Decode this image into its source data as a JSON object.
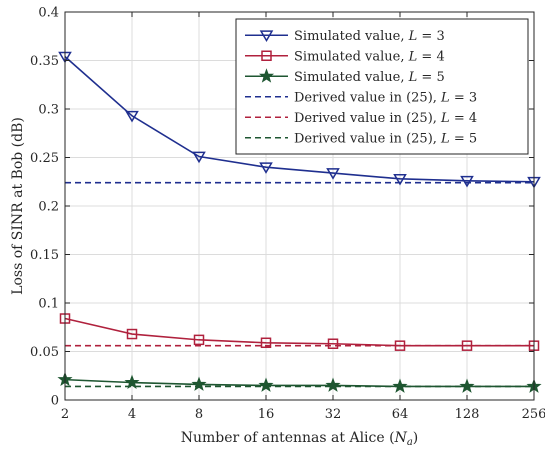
{
  "chart_data": {
    "type": "line",
    "xlabel": "Number of antennas at Alice (N_a)",
    "ylabel": "Loss of SINR at Bob (dB)",
    "x_ticks": [
      "2",
      "4",
      "8",
      "16",
      "32",
      "64",
      "128",
      "256"
    ],
    "x_scale": "log2",
    "ylim": [
      0,
      0.4
    ],
    "y_ticks": [
      "0",
      "0.05",
      "0.1",
      "0.15",
      "0.2",
      "0.25",
      "0.3",
      "0.35",
      "0.4"
    ],
    "grid": true,
    "legend_position": "top-right",
    "series": [
      {
        "name": "Simulated value, L = 3",
        "style": "solid",
        "marker": "triangle-down",
        "color": "#1f2f8f",
        "values": [
          0.354,
          0.293,
          0.251,
          0.24,
          0.234,
          0.228,
          0.226,
          0.225
        ]
      },
      {
        "name": "Simulated value, L = 4",
        "style": "solid",
        "marker": "square",
        "color": "#b0213d",
        "values": [
          0.084,
          0.068,
          0.062,
          0.059,
          0.058,
          0.056,
          0.056,
          0.056
        ]
      },
      {
        "name": "Simulated value, L = 5",
        "style": "solid",
        "marker": "star",
        "color": "#1e5631",
        "values": [
          0.021,
          0.018,
          0.016,
          0.015,
          0.015,
          0.014,
          0.014,
          0.014
        ]
      },
      {
        "name": "Derived value in (25), L = 3",
        "style": "dashed",
        "marker": "none",
        "color": "#1f2f8f",
        "values": [
          0.224,
          0.224,
          0.224,
          0.224,
          0.224,
          0.224,
          0.224,
          0.224
        ]
      },
      {
        "name": "Derived value in (25), L = 4",
        "style": "dashed",
        "marker": "none",
        "color": "#b0213d",
        "values": [
          0.056,
          0.056,
          0.056,
          0.056,
          0.056,
          0.056,
          0.056,
          0.056
        ]
      },
      {
        "name": "Derived value in (25), L = 5",
        "style": "dashed",
        "marker": "none",
        "color": "#1e5631",
        "values": [
          0.014,
          0.014,
          0.014,
          0.014,
          0.014,
          0.014,
          0.014,
          0.014
        ]
      }
    ]
  }
}
